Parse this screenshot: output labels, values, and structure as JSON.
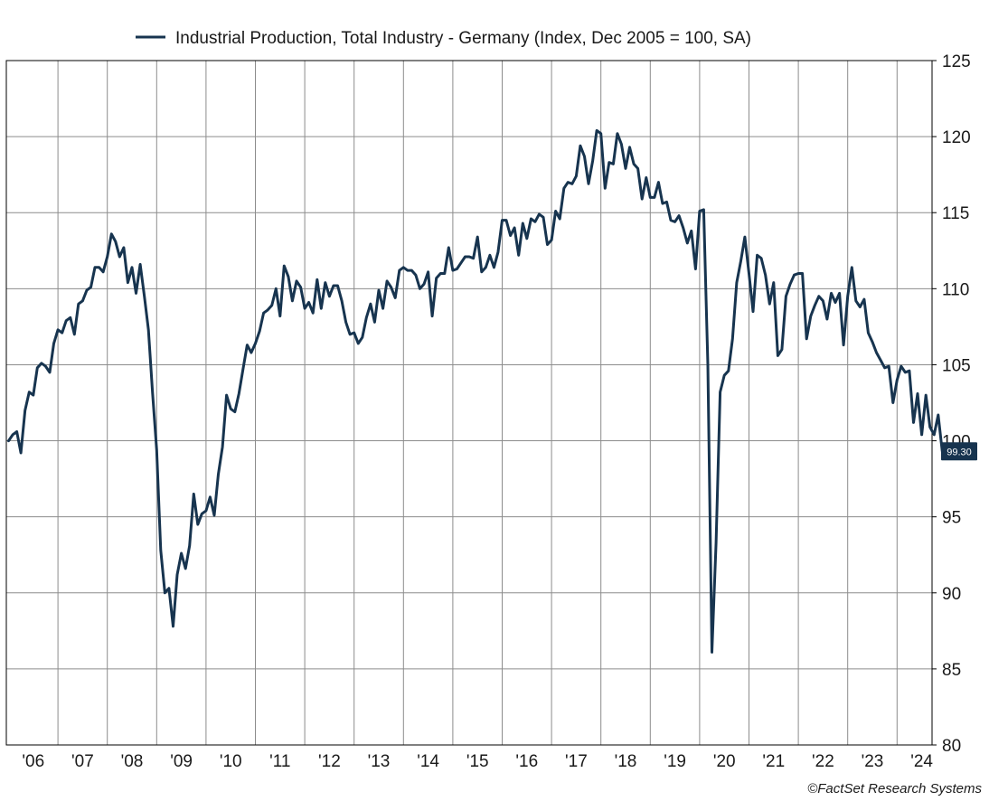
{
  "chart_data": {
    "type": "line",
    "title": "",
    "xlabel": "",
    "ylabel": "",
    "ylim": [
      80,
      125
    ],
    "grid": true,
    "legend_placement": "top-center",
    "y_ticks": [
      "80",
      "85",
      "90",
      "95",
      "100",
      "105",
      "110",
      "115",
      "120",
      "125"
    ],
    "x_ticks": [
      "'06",
      "'07",
      "'08",
      "'09",
      "'10",
      "'11",
      "'12",
      "'13",
      "'14",
      "'15",
      "'16",
      "'17",
      "'18",
      "'19",
      "'20",
      "'21",
      "'22",
      "'23",
      "'24"
    ],
    "last_value_label": "99.30",
    "credit": "©FactSet Research Systems",
    "line_color": "#17344f",
    "series": [
      {
        "name": "Industrial Production, Total Industry - Germany (Index, Dec 2005 = 100, SA)",
        "start": "2006-01",
        "frequency": "monthly",
        "values": [
          100.0,
          100.4,
          100.6,
          99.2,
          102.0,
          103.2,
          103.0,
          104.8,
          105.1,
          104.9,
          104.5,
          106.4,
          107.3,
          107.1,
          107.9,
          108.1,
          107.0,
          109.0,
          109.2,
          109.9,
          110.1,
          111.4,
          111.4,
          111.1,
          112.1,
          113.6,
          113.1,
          112.1,
          112.7,
          110.4,
          111.4,
          109.7,
          111.6,
          109.5,
          107.3,
          103.1,
          99.4,
          92.8,
          90.0,
          90.3,
          87.8,
          91.2,
          92.6,
          91.6,
          93.1,
          96.5,
          94.5,
          95.2,
          95.4,
          96.3,
          95.1,
          97.8,
          99.6,
          103.0,
          102.1,
          101.9,
          103.1,
          104.7,
          106.3,
          105.8,
          106.4,
          107.2,
          108.4,
          108.6,
          108.9,
          110.0,
          108.2,
          111.5,
          110.8,
          109.2,
          110.5,
          110.1,
          108.7,
          109.1,
          108.4,
          110.6,
          108.7,
          110.4,
          109.5,
          110.2,
          110.2,
          109.2,
          107.8,
          107.0,
          107.1,
          106.4,
          106.8,
          108.1,
          109.0,
          107.8,
          109.9,
          108.7,
          110.5,
          110.1,
          109.4,
          111.2,
          111.4,
          111.2,
          111.2,
          110.9,
          110.0,
          110.3,
          111.1,
          108.2,
          110.7,
          111.0,
          111.0,
          112.7,
          111.2,
          111.3,
          111.7,
          112.1,
          112.1,
          112.0,
          113.4,
          111.1,
          111.4,
          112.2,
          111.4,
          112.4,
          114.5,
          114.5,
          113.5,
          114.0,
          112.2,
          114.3,
          113.3,
          114.6,
          114.4,
          114.9,
          114.7,
          112.9,
          113.2,
          115.1,
          114.6,
          116.6,
          117.0,
          116.9,
          117.4,
          119.4,
          118.7,
          116.9,
          118.4,
          120.4,
          120.2,
          116.6,
          118.3,
          118.2,
          120.2,
          119.5,
          117.9,
          119.3,
          118.2,
          117.9,
          115.9,
          117.3,
          116.0,
          116.0,
          117.0,
          115.6,
          115.7,
          114.5,
          114.4,
          114.8,
          114.0,
          113.0,
          113.8,
          111.3,
          115.1,
          115.2,
          105.0,
          86.1,
          93.3,
          103.2,
          104.3,
          104.6,
          106.7,
          110.4,
          111.8,
          113.4,
          111.0,
          108.5,
          112.2,
          112.0,
          110.9,
          109.0,
          110.4,
          105.6,
          106.0,
          109.5,
          110.3,
          110.9,
          111.0,
          111.0,
          106.7,
          108.2,
          108.9,
          109.5,
          109.2,
          108.0,
          109.7,
          109.1,
          109.7,
          106.3,
          109.5,
          111.4,
          109.2,
          108.8,
          109.3,
          107.1,
          106.5,
          105.8,
          105.3,
          104.8,
          104.9,
          102.5,
          104.0,
          104.9,
          104.5,
          104.6,
          101.2,
          103.1,
          100.4,
          103.0,
          100.9,
          100.4,
          101.7,
          99.3
        ]
      }
    ]
  }
}
